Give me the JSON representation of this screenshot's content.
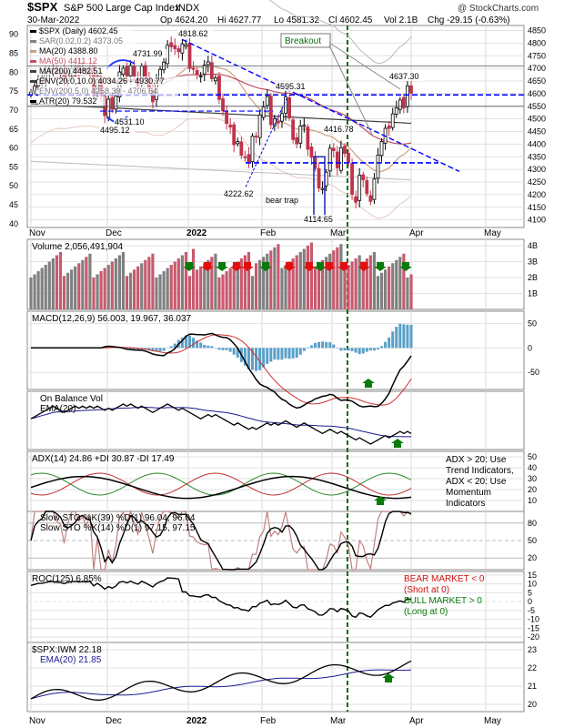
{
  "header": {
    "symbol": "$SPX",
    "name": "S&P 500 Large Cap Index",
    "exchange": "INDX",
    "date": "30-Mar-2022",
    "open": "Op 4624.20",
    "high": "Hi 4627.77",
    "low": "Lo 4581.32",
    "close": "Cl 4602.45",
    "volume": "Vol 2.1B",
    "change": "Chg -29.15 (-0.63%)",
    "watermark": "@ StockCharts.com"
  },
  "colors": {
    "up": "#000000",
    "down": "#c0334a",
    "vol_up": "#808080",
    "vol_down": "#c85a6e",
    "blue_line": "#0000ff",
    "green_arrow": "#0a7a0a",
    "red_arrow": "#e01010",
    "rsi_blue": "#1a1aa0",
    "macd_hist": "#5aa0c8",
    "ma20": "#c8a080",
    "ma50": "#c05060",
    "ma200": "#404040"
  },
  "chart_data": [
    {
      "id": "price",
      "type": "candlestick",
      "title": "$SPX (Daily) 4602.45",
      "legend": [
        {
          "label": "$SPX (Daily) 4602.45",
          "color": "#000000"
        },
        {
          "label": "SAR(0.02,0.2) 4373.05",
          "color": "#808080"
        },
        {
          "label": "MA(20) 4388.80",
          "color": "#c8a080"
        },
        {
          "label": "MA(50) 4411.12",
          "color": "#c05060"
        },
        {
          "label": "MA(200) 4482.51",
          "color": "#404040"
        },
        {
          "label": "ENV(20.0,10.0) 4034.26 - 4930.77",
          "color": "#404040"
        },
        {
          "label": "ENV(200,5.0) 4258.39 - 4706.64",
          "color": "#a0a0a0"
        },
        {
          "label": "ATR(20) 79.532",
          "color": "#000000"
        }
      ],
      "right_axis": [
        4100,
        4150,
        4200,
        4250,
        4300,
        4350,
        4400,
        4450,
        4500,
        4550,
        4600,
        4650,
        4700,
        4750,
        4800,
        4850
      ],
      "left_axis": [
        40,
        45,
        50,
        55,
        60,
        65,
        70,
        75,
        80,
        85,
        90
      ],
      "ylim": [
        4070,
        4870
      ],
      "x_labels": [
        "Nov",
        "Dec",
        "2022",
        "Feb",
        "Mar",
        "Apr",
        "May"
      ],
      "annotations": [
        "4818.62",
        "4731.99",
        "4595.31",
        "4637.30",
        "4531.10",
        "4495.12",
        "4416.78",
        "4222.62",
        "4114.65",
        "bear trap",
        "Breakout"
      ],
      "closes": [
        4606,
        4630,
        4655,
        4660,
        4680,
        4697,
        4701,
        4685,
        4680,
        4649,
        4682,
        4700,
        4704,
        4688,
        4697,
        4690,
        4701,
        4595,
        4655,
        4594,
        4513,
        4578,
        4538,
        4591,
        4686,
        4701,
        4668,
        4712,
        4668,
        4634,
        4709,
        4668,
        4620,
        4568,
        4650,
        4696,
        4725,
        4792,
        4786,
        4778,
        4766,
        4797,
        4794,
        4700,
        4696,
        4677,
        4670,
        4713,
        4726,
        4659,
        4662,
        4577,
        4532,
        4482,
        4468,
        4398,
        4410,
        4356,
        4349,
        4326,
        4432,
        4431,
        4516,
        4547,
        4589,
        4477,
        4500,
        4484,
        4521,
        4587,
        4504,
        4418,
        4401,
        4472,
        4475,
        4380,
        4348,
        4304,
        4226,
        4225,
        4289,
        4384,
        4374,
        4306,
        4386,
        4363,
        4328,
        4201,
        4170,
        4277,
        4259,
        4204,
        4173,
        4262,
        4357,
        4411,
        4463,
        4462,
        4520,
        4544,
        4575,
        4543,
        4631,
        4602
      ],
      "breakout_level": 4595,
      "support_level": 4326
    },
    {
      "id": "volume",
      "type": "bar",
      "title": "Volume 2,056,491,904",
      "right_axis": [
        "1B",
        "2B",
        "3B",
        "4B"
      ],
      "ylim": [
        0,
        4.4
      ]
    },
    {
      "id": "macd",
      "type": "line",
      "title": "MACD(12,26,9) 56.003, 19.967, 36.037",
      "series": [
        {
          "name": "MACD",
          "value": 56.003
        },
        {
          "name": "Signal",
          "value": 19.967
        },
        {
          "name": "Histogram",
          "value": 36.037
        }
      ],
      "right_axis": [
        -50,
        0,
        50
      ],
      "ylim": [
        -85,
        75
      ]
    },
    {
      "id": "obv",
      "type": "line",
      "title": "On Balance Vol",
      "legend": [
        "On Balance Vol",
        "EMA(20)"
      ]
    },
    {
      "id": "adx",
      "type": "line",
      "title": "ADX(14) 24.86 +DI 30.87 -DI 17.49",
      "right_axis": [
        10,
        20,
        30,
        40,
        50
      ],
      "ylim": [
        0,
        55
      ],
      "note": "ADX > 20: Use Trend Indicators, ADX < 20: Use Momentum Indicators",
      "note_lines": [
        "ADX > 20: Use",
        "Trend Indicators,",
        "ADX < 20: Use",
        "Momentum",
        "Indicators"
      ]
    },
    {
      "id": "stochastics",
      "type": "line",
      "title": "Slow STO %K(39) %D(1) 96.04, 96.04",
      "title2": "Slow STO %K(14) %D(1) 97.15, 97.15",
      "right_axis": [
        20,
        50,
        80
      ],
      "ylim": [
        0,
        100
      ]
    },
    {
      "id": "roc",
      "type": "line",
      "title": "ROC(125) 6.85%",
      "right_axis": [
        -20,
        -15,
        -10,
        -5,
        0,
        5,
        10,
        15
      ],
      "ylim": [
        -23,
        17
      ],
      "notes": [
        "BEAR MARKET < 0",
        "(Short at 0)",
        "BULL MARKET > 0",
        "(Long at 0)"
      ]
    },
    {
      "id": "ratio",
      "type": "line",
      "title": "$SPX:IWM 22.18",
      "legend": [
        "$SPX:IWM 22.18",
        "EMA(20) 21.85"
      ],
      "right_axis": [
        20,
        21,
        22,
        23
      ],
      "ylim": [
        19.6,
        23.4
      ]
    }
  ]
}
